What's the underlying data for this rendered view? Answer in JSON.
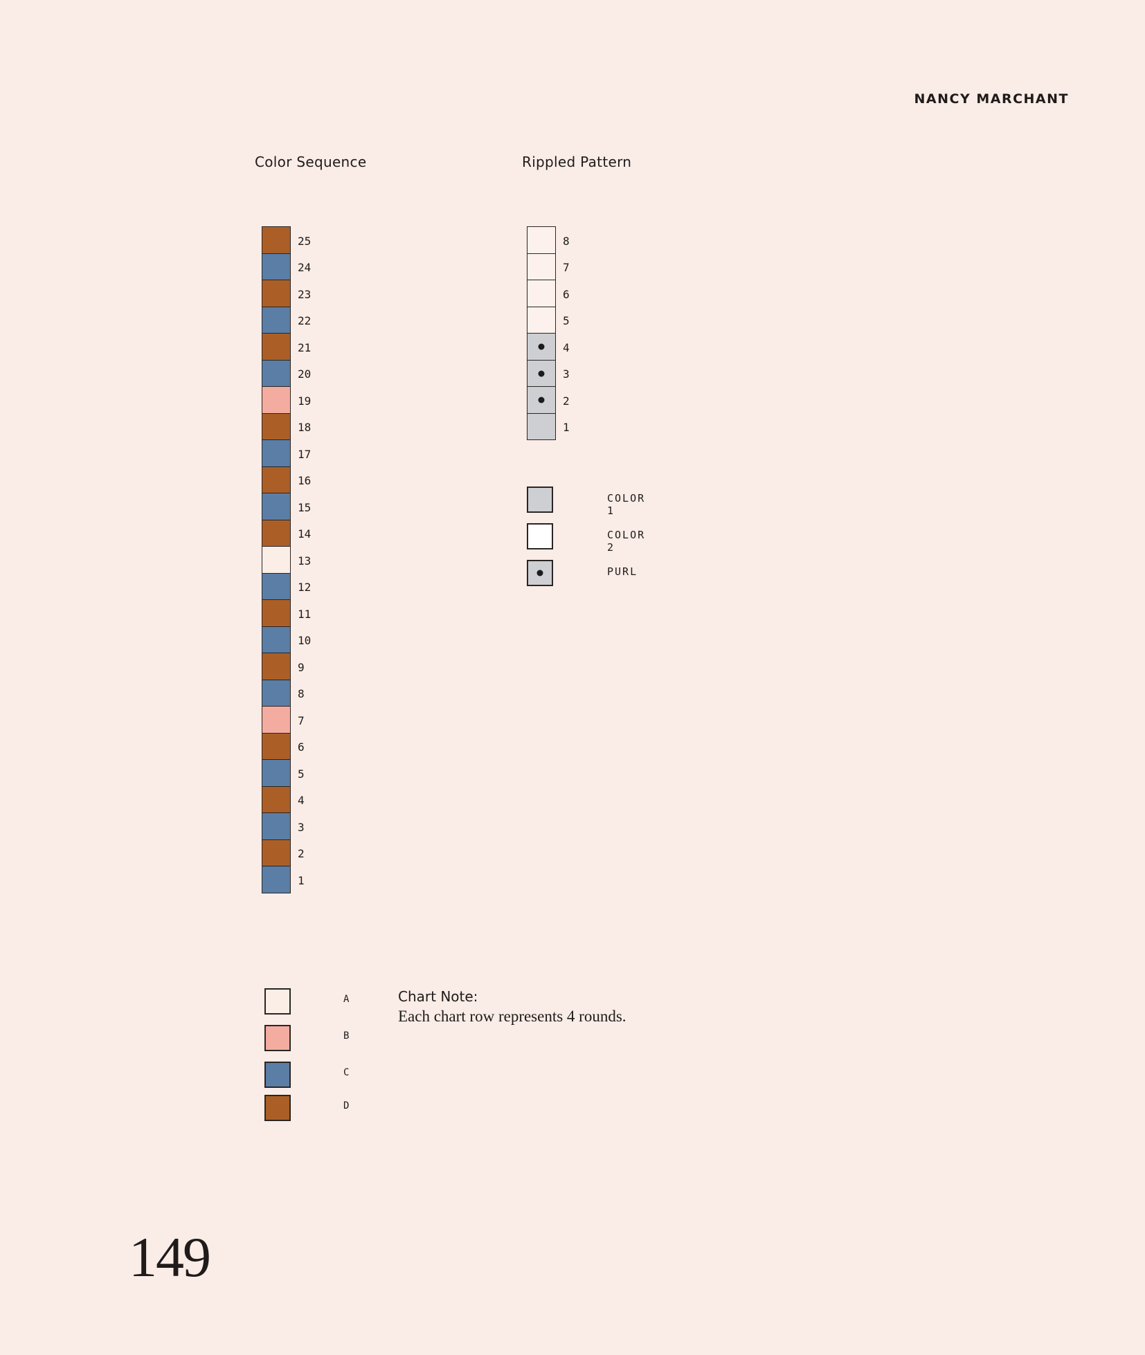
{
  "header": {
    "author": "NANCY MARCHANT"
  },
  "colors": {
    "A": "#fbeee7",
    "B": "#f5aca0",
    "C": "#5b7ea6",
    "D": "#ab5f27",
    "color1": "#cdcfd2",
    "color2": "#ffffff",
    "row_blank": "#fcf1ec"
  },
  "color_sequence": {
    "title": "Color Sequence",
    "rows": [
      {
        "num": "25",
        "color": "D"
      },
      {
        "num": "24",
        "color": "C"
      },
      {
        "num": "23",
        "color": "D"
      },
      {
        "num": "22",
        "color": "C"
      },
      {
        "num": "21",
        "color": "D"
      },
      {
        "num": "20",
        "color": "C"
      },
      {
        "num": "19",
        "color": "B"
      },
      {
        "num": "18",
        "color": "D"
      },
      {
        "num": "17",
        "color": "C"
      },
      {
        "num": "16",
        "color": "D"
      },
      {
        "num": "15",
        "color": "C"
      },
      {
        "num": "14",
        "color": "D"
      },
      {
        "num": "13",
        "color": "A"
      },
      {
        "num": "12",
        "color": "C"
      },
      {
        "num": "11",
        "color": "D"
      },
      {
        "num": "10",
        "color": "C"
      },
      {
        "num": "9",
        "color": "D"
      },
      {
        "num": "8",
        "color": "C"
      },
      {
        "num": "7",
        "color": "B"
      },
      {
        "num": "6",
        "color": "D"
      },
      {
        "num": "5",
        "color": "C"
      },
      {
        "num": "4",
        "color": "D"
      },
      {
        "num": "3",
        "color": "C"
      },
      {
        "num": "2",
        "color": "D"
      },
      {
        "num": "1",
        "color": "C"
      }
    ]
  },
  "rippled_pattern": {
    "title": "Rippled Pattern",
    "rows": [
      {
        "num": "8",
        "fill": "blank",
        "purl": false
      },
      {
        "num": "7",
        "fill": "blank",
        "purl": false
      },
      {
        "num": "6",
        "fill": "blank",
        "purl": false
      },
      {
        "num": "5",
        "fill": "blank",
        "purl": false
      },
      {
        "num": "4",
        "fill": "color1",
        "purl": true
      },
      {
        "num": "3",
        "fill": "color1",
        "purl": true
      },
      {
        "num": "2",
        "fill": "color1",
        "purl": true
      },
      {
        "num": "1",
        "fill": "color1",
        "purl": false
      }
    ]
  },
  "pattern_legend": [
    {
      "label": "COLOR 1",
      "fill": "color1",
      "purl": false
    },
    {
      "label": "COLOR 2",
      "fill": "color2",
      "purl": false
    },
    {
      "label": "PURL",
      "fill": "color1",
      "purl": true
    }
  ],
  "color_legend": [
    {
      "label": "A",
      "color": "A"
    },
    {
      "label": "B",
      "color": "B"
    },
    {
      "label": "C",
      "color": "C"
    },
    {
      "label": "D",
      "color": "D"
    }
  ],
  "chart_note": {
    "title": "Chart Note:",
    "text": "Each chart row represents 4 rounds."
  },
  "page_number": "149"
}
